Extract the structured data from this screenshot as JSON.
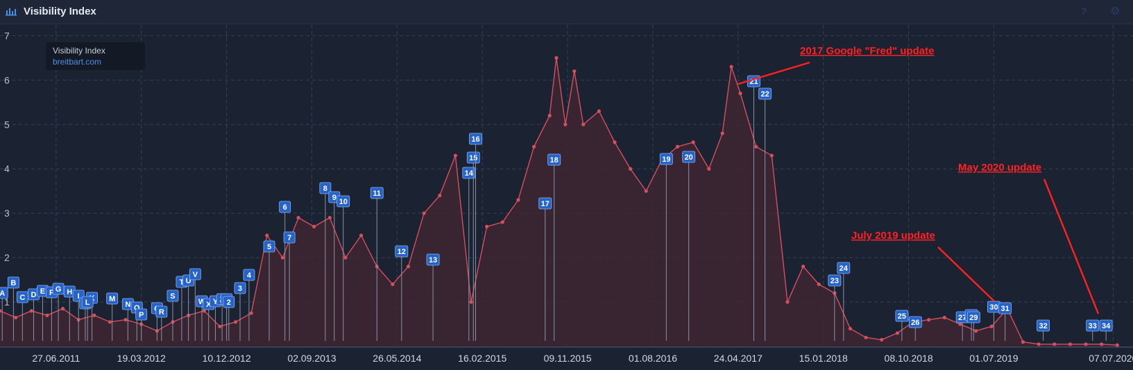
{
  "header": {
    "title": "Visibility Index",
    "help_icon": "question-mark-icon",
    "settings_icon": "gear-icon",
    "chart_icon": "bar-chart-icon"
  },
  "legend": {
    "title": "Visibility Index",
    "series": "breitbart.com"
  },
  "colors": {
    "line": "#d4505d",
    "fill": "#3e2631",
    "marker": "#2563c9",
    "annotation": "#ff2121",
    "background": "#1b2232"
  },
  "chart_data": {
    "type": "area",
    "title": "Visibility Index",
    "xlabel": "",
    "ylabel": "",
    "ylim": [
      0,
      7.1
    ],
    "yticks": [
      "1",
      "2",
      "3",
      "4",
      "5",
      "6",
      "7"
    ],
    "xticks": [
      "27.06.2011",
      "19.03.2012",
      "10.12.2012",
      "02.09.2013",
      "26.05.2014",
      "16.02.2015",
      "09.11.2015",
      "01.08.2016",
      "24.04.2017",
      "15.01.2018",
      "08.10.2018",
      "01.07.2019",
      "07.07.2020"
    ],
    "grid": true,
    "legend_position": "top-left",
    "series": [
      {
        "name": "breitbart.com",
        "x": [
          "2011-01-03",
          "2011-02-21",
          "2011-04-11",
          "2011-05-30",
          "2011-07-18",
          "2011-09-05",
          "2011-10-24",
          "2011-12-12",
          "2012-01-30",
          "2012-03-19",
          "2012-05-07",
          "2012-06-25",
          "2012-08-13",
          "2012-10-01",
          "2012-11-19",
          "2013-01-07",
          "2013-02-25",
          "2013-04-15",
          "2013-06-03",
          "2013-07-22",
          "2013-09-09",
          "2013-10-28",
          "2013-12-16",
          "2014-02-03",
          "2014-03-24",
          "2014-05-12",
          "2014-06-30",
          "2014-08-18",
          "2014-10-06",
          "2014-11-24",
          "2015-01-12",
          "2015-03-02",
          "2015-04-20",
          "2015-06-08",
          "2015-07-27",
          "2015-09-14",
          "2015-10-05",
          "2015-11-02",
          "2015-11-30",
          "2015-12-28",
          "2016-02-15",
          "2016-04-04",
          "2016-05-23",
          "2016-07-11",
          "2016-08-29",
          "2016-10-17",
          "2016-12-05",
          "2017-01-23",
          "2017-03-06",
          "2017-04-03",
          "2017-05-01",
          "2017-06-19",
          "2017-08-07",
          "2017-09-25",
          "2017-11-13",
          "2018-01-01",
          "2018-02-19",
          "2018-04-09",
          "2018-05-28",
          "2018-07-16",
          "2018-09-03",
          "2018-10-22",
          "2018-12-10",
          "2019-01-28",
          "2019-03-18",
          "2019-05-06",
          "2019-06-24",
          "2019-08-12",
          "2019-09-30",
          "2019-11-18",
          "2020-01-06",
          "2020-02-24",
          "2020-04-13",
          "2020-06-01",
          "2020-07-20"
        ],
        "values": [
          0.8,
          0.65,
          0.8,
          0.7,
          0.85,
          0.6,
          0.7,
          0.55,
          0.6,
          0.5,
          0.35,
          0.55,
          0.7,
          0.8,
          0.45,
          0.55,
          0.75,
          2.5,
          2.0,
          2.9,
          2.7,
          2.9,
          2.0,
          2.5,
          1.8,
          1.4,
          1.8,
          3.0,
          3.4,
          4.3,
          1.0,
          2.7,
          2.8,
          3.3,
          4.5,
          5.2,
          6.5,
          5.0,
          6.2,
          5.0,
          5.3,
          4.6,
          4.0,
          3.5,
          4.2,
          4.5,
          4.6,
          4.0,
          4.8,
          6.3,
          5.7,
          4.5,
          4.3,
          1.0,
          1.8,
          1.4,
          1.2,
          0.4,
          0.2,
          0.15,
          0.3,
          0.55,
          0.6,
          0.65,
          0.5,
          0.35,
          0.45,
          0.85,
          0.1,
          0.05,
          0.05,
          0.05,
          0.05,
          0.05,
          0.03
        ]
      }
    ],
    "event_markers": [
      "A",
      "B",
      "C",
      "D",
      "E",
      "F",
      "G",
      "H",
      "I",
      "J",
      "K",
      "L",
      "M",
      "N",
      "O",
      "P",
      "Q",
      "R",
      "S",
      "T",
      "U",
      "V",
      "W",
      "X",
      "Y",
      "Z",
      "1",
      "2",
      "3",
      "4",
      "5",
      "6",
      "7",
      "8",
      "9",
      "10",
      "11",
      "12",
      "13",
      "14",
      "15",
      "16",
      "17",
      "18",
      "19",
      "20",
      "21",
      "22",
      "23",
      "24",
      "25",
      "26",
      "27",
      "28",
      "29",
      "30",
      "31",
      "32",
      "33",
      "34"
    ],
    "annotations": [
      {
        "text": "2017 Google \"Fred\" update",
        "target": "22"
      },
      {
        "text": "July 2019 update",
        "target": "31"
      },
      {
        "text": "May 2020 update",
        "target": "34"
      }
    ]
  }
}
